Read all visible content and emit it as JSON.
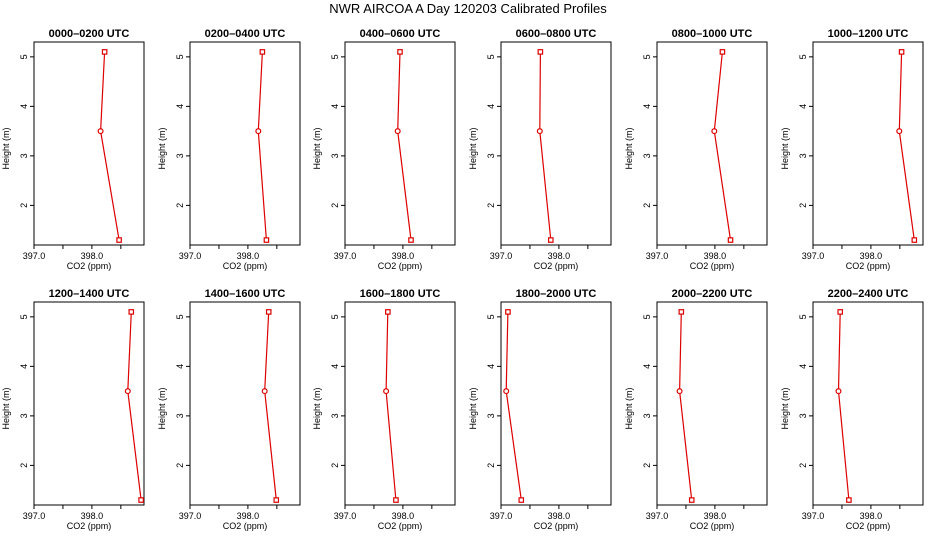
{
  "title": "NWR AIRCOA A  Day 120203  Calibrated Profiles",
  "colors": {
    "profile": "#dd0000",
    "axis": "#000000"
  },
  "chart_data": [
    {
      "type": "line",
      "title": "0000–0200 UTC",
      "xlabel": "CO2 (ppm)",
      "ylabel": "Height (m)",
      "xlim": [
        397.0,
        398.9
      ],
      "ylim": [
        1.2,
        5.3
      ],
      "xticks": [
        397.0,
        397.5,
        398.0,
        398.5
      ],
      "xtick_labels": [
        "397.0",
        "",
        "398.0",
        ""
      ],
      "yticks": [
        2,
        3,
        4,
        5
      ],
      "ytick_labels": [
        "2",
        "3",
        "4",
        "5"
      ],
      "x": [
        398.22,
        398.15,
        398.47
      ],
      "y": [
        5.1,
        3.5,
        1.3
      ]
    },
    {
      "type": "line",
      "title": "0200–0400 UTC",
      "xlabel": "CO2 (ppm)",
      "ylabel": "Height (m)",
      "xlim": [
        397.0,
        398.9
      ],
      "ylim": [
        1.2,
        5.3
      ],
      "xticks": [
        397.0,
        397.5,
        398.0,
        398.5
      ],
      "xtick_labels": [
        "397.0",
        "",
        "398.0",
        ""
      ],
      "yticks": [
        2,
        3,
        4,
        5
      ],
      "ytick_labels": [
        "2",
        "3",
        "4",
        "5"
      ],
      "x": [
        398.25,
        398.18,
        398.32
      ],
      "y": [
        5.1,
        3.5,
        1.3
      ]
    },
    {
      "type": "line",
      "title": "0400–0600 UTC",
      "xlabel": "CO2 (ppm)",
      "ylabel": "Height (m)",
      "xlim": [
        397.0,
        398.9
      ],
      "ylim": [
        1.2,
        5.3
      ],
      "xticks": [
        397.0,
        397.5,
        398.0,
        398.5
      ],
      "xtick_labels": [
        "397.0",
        "",
        "398.0",
        ""
      ],
      "yticks": [
        2,
        3,
        4,
        5
      ],
      "ytick_labels": [
        "2",
        "3",
        "4",
        "5"
      ],
      "x": [
        397.95,
        397.91,
        398.14
      ],
      "y": [
        5.1,
        3.5,
        1.3
      ]
    },
    {
      "type": "line",
      "title": "0600–0800 UTC",
      "xlabel": "CO2 (ppm)",
      "ylabel": "Height (m)",
      "xlim": [
        397.0,
        398.9
      ],
      "ylim": [
        1.2,
        5.3
      ],
      "xticks": [
        397.0,
        397.5,
        398.0,
        398.5
      ],
      "xtick_labels": [
        "397.0",
        "",
        "398.0",
        ""
      ],
      "yticks": [
        2,
        3,
        4,
        5
      ],
      "ytick_labels": [
        "2",
        "3",
        "4",
        "5"
      ],
      "x": [
        397.68,
        397.67,
        397.86
      ],
      "y": [
        5.1,
        3.5,
        1.3
      ]
    },
    {
      "type": "line",
      "title": "0800–1000 UTC",
      "xlabel": "CO2 (ppm)",
      "ylabel": "Height (m)",
      "xlim": [
        397.0,
        398.9
      ],
      "ylim": [
        1.2,
        5.3
      ],
      "xticks": [
        397.0,
        397.5,
        398.0,
        398.5
      ],
      "xtick_labels": [
        "397.0",
        "",
        "398.0",
        ""
      ],
      "yticks": [
        2,
        3,
        4,
        5
      ],
      "ytick_labels": [
        "2",
        "3",
        "4",
        "5"
      ],
      "x": [
        398.13,
        397.99,
        398.27
      ],
      "y": [
        5.1,
        3.5,
        1.3
      ]
    },
    {
      "type": "line",
      "title": "1000–1200 UTC",
      "xlabel": "CO2 (ppm)",
      "ylabel": "Height (m)",
      "xlim": [
        397.0,
        398.9
      ],
      "ylim": [
        1.2,
        5.3
      ],
      "xticks": [
        397.0,
        397.5,
        398.0,
        398.5
      ],
      "xtick_labels": [
        "397.0",
        "",
        "398.0",
        ""
      ],
      "yticks": [
        2,
        3,
        4,
        5
      ],
      "ytick_labels": [
        "2",
        "3",
        "4",
        "5"
      ],
      "x": [
        398.53,
        398.49,
        398.75
      ],
      "y": [
        5.1,
        3.5,
        1.3
      ]
    },
    {
      "type": "line",
      "title": "1200–1400 UTC",
      "xlabel": "CO2 (ppm)",
      "ylabel": "Height (m)",
      "xlim": [
        397.0,
        398.9
      ],
      "ylim": [
        1.2,
        5.3
      ],
      "xticks": [
        397.0,
        397.5,
        398.0,
        398.5
      ],
      "xtick_labels": [
        "397.0",
        "",
        "398.0",
        ""
      ],
      "yticks": [
        2,
        3,
        4,
        5
      ],
      "ytick_labels": [
        "2",
        "3",
        "4",
        "5"
      ],
      "x": [
        398.68,
        398.62,
        398.85
      ],
      "y": [
        5.1,
        3.5,
        1.3
      ]
    },
    {
      "type": "line",
      "title": "1400–1600 UTC",
      "xlabel": "CO2 (ppm)",
      "ylabel": "Height (m)",
      "xlim": [
        397.0,
        398.9
      ],
      "ylim": [
        1.2,
        5.3
      ],
      "xticks": [
        397.0,
        397.5,
        398.0,
        398.5
      ],
      "xtick_labels": [
        "397.0",
        "",
        "398.0",
        ""
      ],
      "yticks": [
        2,
        3,
        4,
        5
      ],
      "ytick_labels": [
        "2",
        "3",
        "4",
        "5"
      ],
      "x": [
        398.36,
        398.29,
        398.49
      ],
      "y": [
        5.1,
        3.5,
        1.3
      ]
    },
    {
      "type": "line",
      "title": "1600–1800 UTC",
      "xlabel": "CO2 (ppm)",
      "ylabel": "Height (m)",
      "xlim": [
        397.0,
        398.9
      ],
      "ylim": [
        1.2,
        5.3
      ],
      "xticks": [
        397.0,
        397.5,
        398.0,
        398.5
      ],
      "xtick_labels": [
        "397.0",
        "",
        "398.0",
        ""
      ],
      "yticks": [
        2,
        3,
        4,
        5
      ],
      "ytick_labels": [
        "2",
        "3",
        "4",
        "5"
      ],
      "x": [
        397.74,
        397.71,
        397.88
      ],
      "y": [
        5.1,
        3.5,
        1.3
      ]
    },
    {
      "type": "line",
      "title": "1800–2000 UTC",
      "xlabel": "CO2 (ppm)",
      "ylabel": "Height (m)",
      "xlim": [
        397.0,
        398.9
      ],
      "ylim": [
        1.2,
        5.3
      ],
      "xticks": [
        397.0,
        397.5,
        398.0,
        398.5
      ],
      "xtick_labels": [
        "397.0",
        "",
        "398.0",
        ""
      ],
      "yticks": [
        2,
        3,
        4,
        5
      ],
      "ytick_labels": [
        "2",
        "3",
        "4",
        "5"
      ],
      "x": [
        397.12,
        397.09,
        397.35
      ],
      "y": [
        5.1,
        3.5,
        1.3
      ]
    },
    {
      "type": "line",
      "title": "2000–2200 UTC",
      "xlabel": "CO2 (ppm)",
      "ylabel": "Height (m)",
      "xlim": [
        397.0,
        398.9
      ],
      "ylim": [
        1.2,
        5.3
      ],
      "xticks": [
        397.0,
        397.5,
        398.0,
        398.5
      ],
      "xtick_labels": [
        "397.0",
        "",
        "398.0",
        ""
      ],
      "yticks": [
        2,
        3,
        4,
        5
      ],
      "ytick_labels": [
        "2",
        "3",
        "4",
        "5"
      ],
      "x": [
        397.42,
        397.39,
        397.6
      ],
      "y": [
        5.1,
        3.5,
        1.3
      ]
    },
    {
      "type": "line",
      "title": "2200–2400 UTC",
      "xlabel": "CO2 (ppm)",
      "ylabel": "Height (m)",
      "xlim": [
        397.0,
        398.9
      ],
      "ylim": [
        1.2,
        5.3
      ],
      "xticks": [
        397.0,
        397.5,
        398.0,
        398.5
      ],
      "xtick_labels": [
        "397.0",
        "",
        "398.0",
        ""
      ],
      "yticks": [
        2,
        3,
        4,
        5
      ],
      "ytick_labels": [
        "2",
        "3",
        "4",
        "5"
      ],
      "x": [
        397.47,
        397.44,
        397.62
      ],
      "y": [
        5.1,
        3.5,
        1.3
      ]
    }
  ]
}
